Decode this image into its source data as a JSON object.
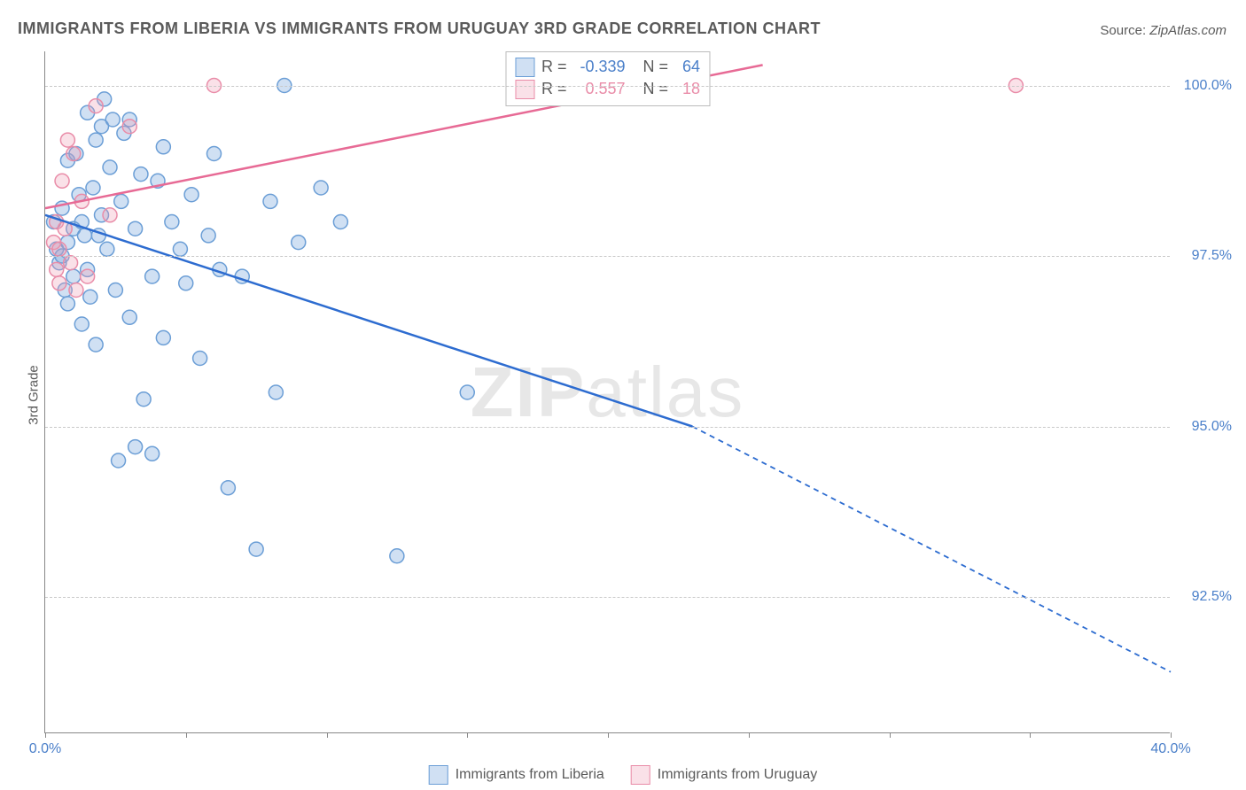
{
  "title": "IMMIGRANTS FROM LIBERIA VS IMMIGRANTS FROM URUGUAY 3RD GRADE CORRELATION CHART",
  "source_label": "Source:",
  "source_value": "ZipAtlas.com",
  "ylabel": "3rd Grade",
  "watermark_a": "ZIP",
  "watermark_b": "atlas",
  "chart": {
    "type": "scatter",
    "xlim": [
      0,
      40
    ],
    "ylim": [
      90.5,
      100.5
    ],
    "xticks": [
      0,
      5,
      10,
      15,
      20,
      25,
      30,
      35,
      40
    ],
    "xtick_labels_shown": {
      "0": "0.0%",
      "40": "40.0%"
    },
    "yticks": [
      92.5,
      95.0,
      97.5,
      100.0
    ],
    "ytick_labels": [
      "92.5%",
      "95.0%",
      "97.5%",
      "100.0%"
    ],
    "grid_color": "#c9c9c9",
    "axis_color": "#888888",
    "background_color": "#ffffff",
    "marker_radius": 8,
    "marker_stroke_width": 1.5,
    "line_width": 2.5,
    "dash_pattern": "6,5",
    "series": [
      {
        "name": "Immigrants from Liberia",
        "color_fill": "rgba(120,165,220,0.35)",
        "color_stroke": "#6b9ed6",
        "line_color": "#2d6cd0",
        "R": "-0.339",
        "N": "64",
        "trend": {
          "x1": 0,
          "y1": 98.1,
          "x2": 23.0,
          "y2": 95.0,
          "ext_x2": 40.0,
          "ext_y2": 91.4
        },
        "points": [
          [
            0.3,
            98.0
          ],
          [
            0.4,
            97.6
          ],
          [
            0.5,
            97.4
          ],
          [
            0.6,
            97.5
          ],
          [
            0.6,
            98.2
          ],
          [
            0.7,
            97.0
          ],
          [
            0.8,
            97.7
          ],
          [
            0.8,
            98.9
          ],
          [
            0.8,
            96.8
          ],
          [
            1.0,
            97.9
          ],
          [
            1.0,
            97.2
          ],
          [
            1.1,
            99.0
          ],
          [
            1.2,
            98.4
          ],
          [
            1.3,
            96.5
          ],
          [
            1.3,
            98.0
          ],
          [
            1.4,
            97.8
          ],
          [
            1.5,
            99.6
          ],
          [
            1.5,
            97.3
          ],
          [
            1.6,
            96.9
          ],
          [
            1.7,
            98.5
          ],
          [
            1.8,
            99.2
          ],
          [
            1.8,
            96.2
          ],
          [
            1.9,
            97.8
          ],
          [
            2.0,
            99.4
          ],
          [
            2.0,
            98.1
          ],
          [
            2.1,
            99.8
          ],
          [
            2.2,
            97.6
          ],
          [
            2.3,
            98.8
          ],
          [
            2.4,
            99.5
          ],
          [
            2.5,
            97.0
          ],
          [
            2.6,
            94.5
          ],
          [
            2.7,
            98.3
          ],
          [
            2.8,
            99.3
          ],
          [
            3.0,
            96.6
          ],
          [
            3.0,
            99.5
          ],
          [
            3.2,
            97.9
          ],
          [
            3.2,
            94.7
          ],
          [
            3.4,
            98.7
          ],
          [
            3.5,
            95.4
          ],
          [
            3.8,
            94.6
          ],
          [
            3.8,
            97.2
          ],
          [
            4.0,
            98.6
          ],
          [
            4.2,
            99.1
          ],
          [
            4.2,
            96.3
          ],
          [
            4.5,
            98.0
          ],
          [
            4.8,
            97.6
          ],
          [
            5.0,
            97.1
          ],
          [
            5.2,
            98.4
          ],
          [
            5.5,
            96.0
          ],
          [
            5.8,
            97.8
          ],
          [
            6.0,
            99.0
          ],
          [
            6.2,
            97.3
          ],
          [
            6.5,
            94.1
          ],
          [
            7.0,
            97.2
          ],
          [
            7.5,
            93.2
          ],
          [
            8.0,
            98.3
          ],
          [
            8.2,
            95.5
          ],
          [
            8.5,
            100.0
          ],
          [
            9.0,
            97.7
          ],
          [
            9.8,
            98.5
          ],
          [
            10.5,
            98.0
          ],
          [
            12.5,
            93.1
          ],
          [
            15.0,
            95.5
          ],
          [
            17.5,
            100.0
          ]
        ]
      },
      {
        "name": "Immigrants from Uruguay",
        "color_fill": "rgba(240,155,180,0.30)",
        "color_stroke": "#e98ca8",
        "line_color": "#e76a95",
        "R": "0.557",
        "N": "18",
        "trend": {
          "x1": 0,
          "y1": 98.2,
          "x2": 25.5,
          "y2": 100.3,
          "ext_x2": 25.5,
          "ext_y2": 100.3
        },
        "points": [
          [
            0.3,
            97.7
          ],
          [
            0.4,
            97.3
          ],
          [
            0.4,
            98.0
          ],
          [
            0.5,
            97.6
          ],
          [
            0.5,
            97.1
          ],
          [
            0.6,
            98.6
          ],
          [
            0.7,
            97.9
          ],
          [
            0.8,
            99.2
          ],
          [
            0.9,
            97.4
          ],
          [
            1.0,
            99.0
          ],
          [
            1.1,
            97.0
          ],
          [
            1.3,
            98.3
          ],
          [
            1.5,
            97.2
          ],
          [
            1.8,
            99.7
          ],
          [
            2.3,
            98.1
          ],
          [
            3.0,
            99.4
          ],
          [
            6.0,
            100.0
          ],
          [
            34.5,
            100.0
          ]
        ]
      }
    ]
  },
  "legend_top": [
    {
      "swatch_fill": "rgba(120,165,220,0.35)",
      "swatch_stroke": "#6b9ed6",
      "R": "-0.339",
      "N": "64",
      "val_class": "val-blue"
    },
    {
      "swatch_fill": "rgba(240,155,180,0.30)",
      "swatch_stroke": "#e98ca8",
      "R": "0.557",
      "N": "18",
      "val_class": "val-pink"
    }
  ],
  "legend_bottom": [
    {
      "swatch_fill": "rgba(120,165,220,0.35)",
      "swatch_stroke": "#6b9ed6",
      "label": "Immigrants from Liberia"
    },
    {
      "swatch_fill": "rgba(240,155,180,0.30)",
      "swatch_stroke": "#e98ca8",
      "label": "Immigrants from Uruguay"
    }
  ]
}
